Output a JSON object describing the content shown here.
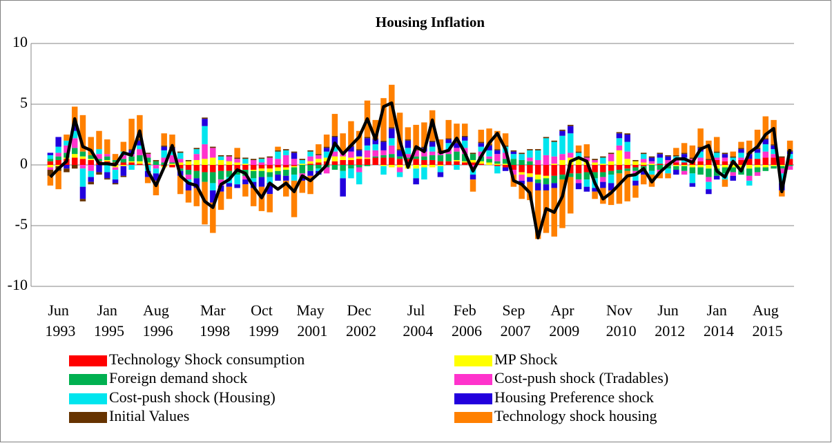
{
  "chart_data": {
    "type": "stacked-bar-line",
    "title": "Housing Inflation",
    "categories": [
      null,
      "Jun 1993",
      null,
      null,
      null,
      null,
      null,
      "Jan 1995",
      null,
      null,
      null,
      null,
      null,
      "Aug 1996",
      null,
      null,
      null,
      null,
      null,
      null,
      "Mar 1998",
      null,
      null,
      null,
      null,
      null,
      "Oct 1999",
      null,
      null,
      null,
      null,
      null,
      "May 2001",
      null,
      null,
      null,
      null,
      null,
      "Dec 2002",
      null,
      null,
      null,
      null,
      null,
      null,
      "Jul 2004",
      null,
      null,
      null,
      null,
      null,
      "Feb 2006",
      null,
      null,
      null,
      null,
      null,
      "Sep 2007",
      null,
      null,
      null,
      null,
      null,
      "Apr 2009",
      null,
      null,
      null,
      null,
      null,
      null,
      "Nov 2010",
      null,
      null,
      null,
      null,
      null,
      "Jun 2012",
      null,
      null,
      null,
      null,
      null,
      "Jan 2014",
      null,
      null,
      null,
      null,
      null,
      "Aug 2015",
      null,
      null,
      null
    ],
    "ylim": [
      -10,
      10
    ],
    "yticks": [
      -10,
      -5,
      0,
      5,
      10
    ],
    "grid": true,
    "series": [
      {
        "name": "Technology Shock consumption",
        "color": "#ff0000",
        "values": [
          0.3,
          0.4,
          0.5,
          0.6,
          0.5,
          0.4,
          0.3,
          0.3,
          0.2,
          0.2,
          0.2,
          0.1,
          0.1,
          0,
          -0.1,
          -0.2,
          -0.3,
          -0.4,
          -0.5,
          -0.6,
          -0.6,
          -0.5,
          -0.5,
          -0.4,
          -0.4,
          -0.4,
          -0.3,
          -0.3,
          -0.2,
          -0.2,
          -0.1,
          0,
          0.1,
          0.2,
          0.3,
          0.3,
          0.4,
          0.4,
          0.5,
          0.5,
          0.6,
          0.6,
          0.6,
          0.5,
          0.5,
          0.5,
          0.4,
          0.4,
          0.3,
          0.3,
          0.3,
          0.2,
          0.2,
          0.1,
          0,
          -0.1,
          -0.2,
          -0.4,
          -0.6,
          -0.7,
          -0.8,
          -0.9,
          -0.9,
          -0.8,
          -0.7,
          -0.7,
          -0.6,
          -0.6,
          -0.6,
          -0.5,
          -0.4,
          -0.3,
          -0.2,
          -0.1,
          0,
          0.1,
          0.1,
          0.2,
          0.2,
          0.3,
          0.3,
          0.4,
          0.4,
          0.3,
          0.3,
          0.4,
          0.5,
          0.5,
          0.6,
          0.6,
          0.6,
          0.5
        ]
      },
      {
        "name": "MP Shock",
        "color": "#ffff00",
        "values": [
          -0.2,
          -0.1,
          0.1,
          0.3,
          0.2,
          0.1,
          0,
          0.1,
          -0.2,
          -0.1,
          0.1,
          0.2,
          0.1,
          0,
          -0.1,
          0.1,
          0.2,
          0.3,
          0.4,
          0.5,
          0.6,
          0.4,
          0.3,
          0.2,
          0.1,
          -0.1,
          -0.2,
          -0.3,
          -0.3,
          -0.2,
          -0.1,
          0.1,
          0.2,
          0.3,
          0.3,
          0.4,
          0.3,
          0.2,
          0.2,
          0.1,
          0,
          -0.1,
          -0.2,
          -0.2,
          -0.3,
          -0.3,
          -0.2,
          -0.2,
          -0.1,
          0,
          0.1,
          0.1,
          0.2,
          0.2,
          0.2,
          0.1,
          0.1,
          0,
          -0.2,
          -0.3,
          -0.4,
          -0.2,
          0.1,
          0.4,
          0.6,
          0.5,
          0.3,
          0.2,
          0.1,
          0.3,
          1.2,
          0.5,
          0.3,
          0.2,
          0.1,
          0,
          0,
          -0.1,
          -0.1,
          -0.2,
          -0.2,
          -0.3,
          -0.3,
          -0.2,
          -0.2,
          -0.3,
          -0.3,
          -0.2,
          -0.2,
          -0.1,
          -0.1,
          0
        ]
      },
      {
        "name": "Foreign demand shock",
        "color": "#00b050",
        "values": [
          0.2,
          0.3,
          0.4,
          0.5,
          0.4,
          0.3,
          0.2,
          0.3,
          0.2,
          0.3,
          0.4,
          0.5,
          0.4,
          0.3,
          0.2,
          0.1,
          -0.2,
          -0.4,
          -0.6,
          -0.8,
          -0.9,
          -0.7,
          -0.5,
          -0.4,
          -0.5,
          -0.6,
          -0.5,
          -0.4,
          -0.3,
          -0.5,
          -0.6,
          -0.7,
          -0.5,
          -0.3,
          -0.2,
          -0.4,
          -0.5,
          -0.3,
          -0.2,
          -0.1,
          0.1,
          0.2,
          0.3,
          0.2,
          0.1,
          0.2,
          0.3,
          0.4,
          0.5,
          0.6,
          0.7,
          0.6,
          0.5,
          0.4,
          0.3,
          0.2,
          0.4,
          0.5,
          0.4,
          0.3,
          -0.3,
          -0.5,
          -0.6,
          -0.4,
          -0.3,
          -0.5,
          -0.6,
          -0.5,
          -0.4,
          -0.3,
          -0.3,
          -0.2,
          -0.3,
          -0.4,
          -0.5,
          -0.4,
          -0.3,
          -0.3,
          -0.4,
          -0.5,
          -0.6,
          -0.7,
          -0.6,
          -0.5,
          -0.4,
          -0.5,
          -0.6,
          -0.4,
          -0.3,
          -0.2,
          -0.2,
          -0.1
        ]
      },
      {
        "name": "Cost-push shock (Tradables)",
        "color": "#ff33cc",
        "values": [
          -0.2,
          0.3,
          0.6,
          0.8,
          -0.3,
          -0.5,
          0.4,
          0.2,
          -0.2,
          0.3,
          0.2,
          0.5,
          0.3,
          -0.3,
          0.4,
          0.6,
          0.3,
          -0.4,
          0.5,
          1.2,
          0.8,
          -0.5,
          0.4,
          0.3,
          -0.3,
          0.4,
          0.2,
          0.6,
          0.5,
          0.8,
          0.5,
          -0.3,
          0.4,
          0.3,
          -0.5,
          0.4,
          0.3,
          0.5,
          -0.4,
          0.6,
          0.5,
          0.4,
          0.7,
          -0.4,
          0.3,
          0.5,
          0.4,
          0.3,
          0.2,
          0.4,
          0.3,
          0.5,
          -0.3,
          0.4,
          0.2,
          0.6,
          0.5,
          -0.4,
          -0.5,
          0.3,
          0.4,
          0.8,
          0.6,
          0.5,
          0.4,
          -0.3,
          0.3,
          0.2,
          -0.4,
          0.6,
          0.4,
          0.6,
          -0.3,
          0.3,
          0.2,
          -0.2,
          0.3,
          0.2,
          -0.3,
          0.2,
          0.3,
          -0.4,
          0.2,
          0.3,
          -0.3,
          0.2,
          -0.4,
          -0.3,
          0.5,
          0.3,
          -0.4,
          -0.3
        ]
      },
      {
        "name": "Cost-push shock (Housing)",
        "color": "#00e5ee",
        "values": [
          0.3,
          0.5,
          0.4,
          0.6,
          -1.5,
          -0.5,
          0.4,
          -0.6,
          -0.8,
          0.3,
          -0.4,
          0.3,
          -0.5,
          -0.4,
          0.6,
          0.4,
          0.5,
          -0.3,
          0.4,
          1.5,
          -0.6,
          0.3,
          -0.5,
          -0.8,
          0.4,
          -0.3,
          0.3,
          -0.5,
          0.6,
          0.4,
          -0.5,
          0.3,
          0.4,
          -0.2,
          0.5,
          0.4,
          -0.6,
          -0.8,
          -1,
          0.4,
          0.5,
          -0.7,
          0.6,
          -0.4,
          0.5,
          -0.8,
          -1,
          0.4,
          -0.5,
          0.5,
          -0.4,
          0.6,
          -0.5,
          0.4,
          0.5,
          -0.6,
          0.5,
          0.4,
          0.5,
          0.6,
          0.8,
          1.4,
          1.2,
          1.5,
          1.6,
          0.5,
          -0.6,
          -0.8,
          0.5,
          -0.7,
          0.6,
          0.8,
          -0.5,
          0.4,
          -0.3,
          0.5,
          -0.4,
          0.3,
          0.4,
          -0.8,
          0.5,
          -0.6,
          0.4,
          -0.5,
          0.3,
          0.4,
          -0.4,
          0.5,
          0.6,
          0.4,
          -0.8,
          0.4
        ]
      },
      {
        "name": "Housing Preference shock",
        "color": "#2200dd",
        "values": [
          0.2,
          0.8,
          -0.3,
          0.5,
          -1,
          -0.4,
          -0.6,
          -0.5,
          -0.3,
          -0.8,
          0.3,
          0.4,
          -0.5,
          -0.6,
          0.3,
          0.2,
          -0.4,
          -0.6,
          -0.8,
          0.6,
          -1,
          -0.5,
          -0.3,
          -0.3,
          -0.4,
          -0.5,
          -0.8,
          -0.9,
          -0.5,
          -0.4,
          0.5,
          -0.3,
          -0.4,
          -0.3,
          0.3,
          0.8,
          -1.5,
          0.4,
          0.5,
          0.6,
          0.4,
          0.7,
          0.8,
          0.5,
          0.6,
          -0.5,
          0.3,
          0.4,
          -0.4,
          0.3,
          0.4,
          0.3,
          -0.4,
          0.3,
          0.4,
          0.3,
          -0.3,
          0.2,
          -0.3,
          -0.4,
          -0.6,
          -0.5,
          -0.4,
          0.4,
          0.6,
          -0.5,
          -0.4,
          -0.3,
          -0.5,
          -0.6,
          0.4,
          0.6,
          -0.4,
          -0.3,
          0.3,
          0.3,
          0.3,
          -0.4,
          0.3,
          -0.3,
          0.3,
          -0.4,
          -0.3,
          0.3,
          -0.4,
          0.3,
          0.4,
          0.3,
          0.4,
          0.3,
          -0.6,
          0.2
        ]
      },
      {
        "name": "Initial Values",
        "color": "#663300",
        "values": [
          -0.5,
          -0.4,
          -0.3,
          -0.3,
          -0.2,
          -0.2,
          -0.2,
          -0.1,
          -0.1,
          -0.1,
          0.1,
          0.1,
          0.1,
          0.1,
          0.1,
          0.1,
          0.1,
          0.1,
          0.1,
          0.1,
          0.1,
          0.1,
          0.1,
          0.1,
          0.1,
          0.1,
          0.1,
          0.1,
          0.1,
          0.1,
          0.1,
          0.1,
          0.1,
          0.1,
          0.1,
          0.1,
          0.1,
          0.1,
          0.1,
          0.1,
          0.1,
          0.1,
          0.1,
          0.1,
          0.1,
          0.1,
          0.1,
          0.1,
          0.1,
          0.1,
          0.1,
          0.1,
          0.1,
          0.1,
          0.1,
          0.1,
          0.1,
          0.1,
          0.1,
          0.1,
          0.1,
          0.1,
          0.1,
          0.1,
          0.1,
          0.1,
          0.1,
          0.1,
          0.1,
          0.1,
          0.1,
          0.1,
          0.1,
          0.1,
          0.1,
          0.1,
          0.1,
          0.1,
          0.1,
          0.1,
          0.1,
          0.1,
          0.1,
          0.1,
          0.1,
          0.1,
          0.1,
          0.1,
          0.1,
          0.1,
          0.1,
          0.1
        ]
      },
      {
        "name": "Technology shock housing",
        "color": "#ff8000",
        "values": [
          -0.8,
          -1.5,
          0.5,
          1.5,
          3,
          1.5,
          1.5,
          1.2,
          0.5,
          0.8,
          2.5,
          2,
          -0.5,
          -1.2,
          1,
          1,
          -1.5,
          -1,
          -1.5,
          -3.5,
          -2.5,
          -1.5,
          -1,
          0.8,
          -1,
          -1.5,
          -2,
          -1.5,
          0.3,
          -1.3,
          -3,
          -1,
          -1.5,
          0.8,
          1,
          1.8,
          1.5,
          2,
          1.5,
          3,
          1.5,
          3.5,
          3.5,
          3,
          1,
          2,
          2,
          2.5,
          1,
          1.5,
          1.5,
          1,
          -1,
          1,
          1.3,
          1.5,
          1,
          -1,
          -1.2,
          -1.5,
          -4,
          -3.5,
          -4,
          -4,
          -3,
          0.5,
          1,
          -0.6,
          -1.3,
          -1.2,
          -2.5,
          -2.5,
          -1,
          -0.8,
          -1,
          -0.5,
          -0.4,
          0.6,
          0.8,
          1,
          1.5,
          1.5,
          1.2,
          -0.6,
          0.4,
          0.5,
          1,
          1.5,
          1.8,
          2,
          -0.5,
          0.8
        ]
      }
    ],
    "line": {
      "color": "#000000",
      "values": [
        -1,
        -0.3,
        0.3,
        3.8,
        1.5,
        1.2,
        0.1,
        0.1,
        0,
        1,
        0.8,
        2.8,
        -0.5,
        -1.7,
        -0.2,
        1.6,
        -0.9,
        -1.5,
        -1.7,
        -3,
        -3.5,
        -1.6,
        -1.2,
        -0.4,
        -0.7,
        -1.8,
        -2.7,
        -1.5,
        -2,
        -1.5,
        -2.2,
        -0.9,
        -1.3,
        -0.7,
        0,
        1.8,
        0.9,
        1.6,
        2.3,
        3.8,
        2.1,
        4.8,
        5.1,
        2,
        -0.2,
        1.5,
        1.1,
        3.7,
        1,
        1.2,
        2.2,
        1,
        -0.5,
        0.7,
        1.8,
        2.6,
        1.3,
        -1.3,
        -1.6,
        -2.3,
        -6,
        -3.6,
        -3.9,
        -2.6,
        0.3,
        0.6,
        0.3,
        -1.5,
        -2.8,
        -2.3,
        -1.6,
        -0.9,
        -0.8,
        -0.3,
        -1.4,
        -0.6,
        0,
        0.5,
        0.5,
        0.2,
        1.3,
        1.6,
        -0.5,
        -1,
        0.3,
        -0.5,
        1,
        1.5,
        2.5,
        3,
        -2.2,
        1.3
      ]
    }
  }
}
